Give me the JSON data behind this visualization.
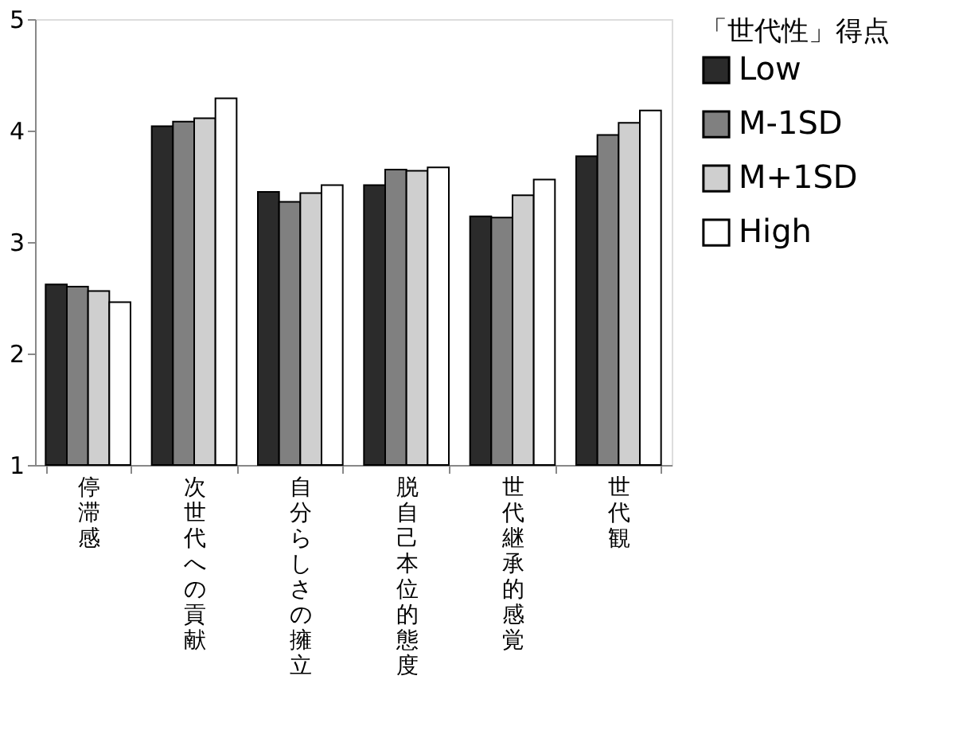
{
  "chart_data": {
    "type": "bar",
    "categories": [
      "停滞感",
      "次世代への貢献",
      "自分らしさの擁立",
      "脱自己本位的態度",
      "世代継承的感覚",
      "世代観"
    ],
    "series": [
      {
        "name": "Low",
        "color": "#2b2b2b",
        "values": [
          2.62,
          4.04,
          3.45,
          3.51,
          3.23,
          3.77
        ]
      },
      {
        "name": "M-1SD",
        "color": "#808080",
        "values": [
          2.6,
          4.08,
          3.36,
          3.65,
          3.22,
          3.96
        ]
      },
      {
        "name": "M+1SD",
        "color": "#cfcfcf",
        "values": [
          2.56,
          4.11,
          3.44,
          3.64,
          3.42,
          4.07
        ]
      },
      {
        "name": "High",
        "color": "#ffffff",
        "values": [
          2.46,
          4.29,
          3.51,
          3.67,
          3.56,
          4.18
        ]
      }
    ],
    "ylim": [
      1,
      5
    ],
    "yticks": [
      1,
      2,
      3,
      4,
      5
    ],
    "grid": false,
    "legend": "right",
    "legend_title": "「世代性」得点"
  }
}
